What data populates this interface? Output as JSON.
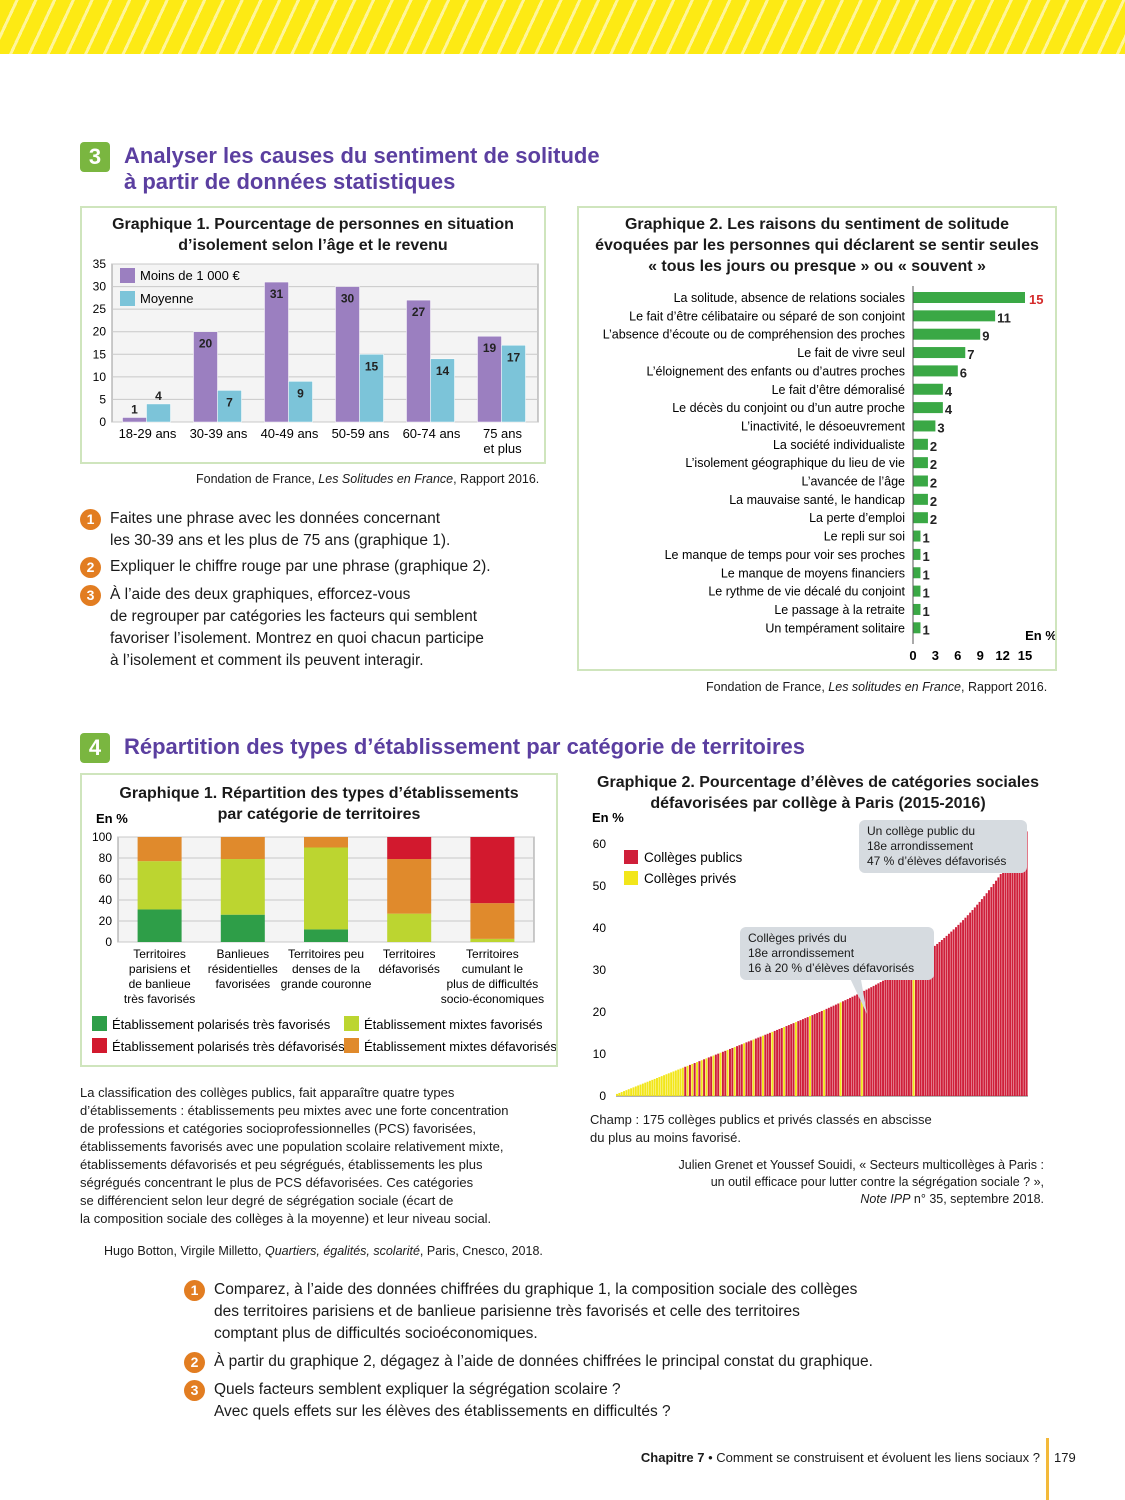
{
  "section3": {
    "number": "3",
    "title_line1": "Analyser les causes du sentiment de solitude",
    "title_line2": "à partir de données statistiques"
  },
  "section4": {
    "number": "4",
    "title": "Répartition des types d’établissement par catégorie de territoires"
  },
  "questions3": [
    {
      "num": "1",
      "lines": [
        "Faites une phrase avec les données concernant",
        "les 30-39 ans et les plus de 75 ans (graphique 1)."
      ]
    },
    {
      "num": "2",
      "lines": [
        "Expliquer le chiffre rouge par une phrase (graphique 2)."
      ]
    },
    {
      "num": "3",
      "lines": [
        "À l’aide des deux graphiques, efforcez-vous",
        "de regrouper par catégories les facteurs qui semblent",
        "favoriser l’isolement. Montrez en quoi chacun participe",
        "à l’isolement et comment ils peuvent interagir."
      ]
    }
  ],
  "questions4": [
    {
      "num": "1",
      "lines": [
        "Comparez, à l’aide des données chiffrées du graphique 1, la composition sociale des collèges",
        "des territoires parisiens et de banlieue parisienne très favorisés et celle des territoires",
        "comptant plus de difficultés socioéconomiques."
      ]
    },
    {
      "num": "2",
      "lines": [
        "À partir du graphique 2, dégagez à l’aide de données chiffrées le principal constat du graphique."
      ]
    },
    {
      "num": "3",
      "lines": [
        "Quels facteurs semblent expliquer la ségrégation scolaire ?",
        "Avec quels effets sur les élèves des établissements en difficultés ?"
      ]
    }
  ],
  "text4": {
    "lines": [
      "La classification des collèges publics, fait apparaître quatre types",
      "d’établissements : établissements peu mixtes avec une forte concentration",
      "de professions et catégories socioprofessionnelles (PCS) favorisées,",
      "établissements favorisés avec une population scolaire relativement mixte,",
      "établissements défavorisés et peu ségrégués, établissements les plus",
      "ségrégués concentrant le plus de PCS défavorisées. Ces catégories",
      "se différencient selon leur degré de ségrégation sociale (écart de",
      "la composition sociale des collèges à la moyenne) et leur niveau social."
    ],
    "source_authors": "Hugo Botton, Virgile Milletto, ",
    "source_title": "Quartiers, égalités, scolarité",
    "source_rest": ", Paris, Cnesco, 2018."
  },
  "footer": {
    "chapter": "Chapitre 7",
    "separator": " • ",
    "chapter_title": "Comment se construisent et évoluent les liens sociaux ?",
    "page": "179"
  },
  "chart_data": [
    {
      "id": "s3g1",
      "type": "bar",
      "title": "Graphique 1. Pourcentage de personnes en situation d’isolement selon l’âge et le revenu",
      "title_line1": "Graphique 1. Pourcentage de personnes en situation",
      "title_line2": "d’isolement selon l’âge et le revenu",
      "categories": [
        "18-29 ans",
        "30-39 ans",
        "40-49 ans",
        "50-59 ans",
        "60-74 ans",
        "75 ans et plus"
      ],
      "category_lines": [
        [
          "18-29 ans"
        ],
        [
          "30-39 ans"
        ],
        [
          "40-49 ans"
        ],
        [
          "50-59 ans"
        ],
        [
          "60-74 ans"
        ],
        [
          "75 ans",
          "et plus"
        ]
      ],
      "series": [
        {
          "name": "Moins de 1 000 €",
          "color": "#9b7fc0",
          "values": [
            1,
            20,
            31,
            30,
            27,
            19
          ]
        },
        {
          "name": "Moyenne",
          "color": "#7cc4d9",
          "values": [
            4,
            7,
            9,
            15,
            14,
            17
          ]
        }
      ],
      "ylim": [
        0,
        35
      ],
      "yticks": [
        0,
        5,
        10,
        15,
        20,
        25,
        30,
        35
      ],
      "grid": true,
      "legend": "top-left",
      "source_prefix": "Fondation de France, ",
      "source_title": "Les Solitudes en France",
      "source_suffix": ", Rapport 2016."
    },
    {
      "id": "s3g2",
      "type": "bar",
      "orientation": "horizontal",
      "title": "Graphique 2. Les raisons du sentiment de solitude évoquées par les personnes qui déclarent se sentir seules « tous les jours ou presque » ou « souvent »",
      "title_lines": [
        "Graphique 2. Les raisons du sentiment de solitude",
        "évoquées par les personnes qui déclarent se sentir seules",
        "« tous les jours ou presque » ou « souvent »"
      ],
      "categories": [
        "La solitude, absence de relations sociales",
        "Le fait d’être célibataire ou séparé de son conjoint",
        "L’absence d’écoute ou de compréhension des proches",
        "Le fait de vivre seul",
        "L’éloignement des enfants ou d’autres proches",
        "Le fait d’être démoralisé",
        "Le décès du conjoint ou d’un autre proche",
        "L’inactivité, le désoeuvrement",
        "La société individualiste",
        "L’isolement géographique du lieu de vie",
        "L’avancée de l’âge",
        "La mauvaise santé, le handicap",
        "La perte d’emploi",
        "Le repli sur soi",
        "Le manque de temps pour voir ses proches",
        "Le manque de moyens financiers",
        "Le rythme de vie décalé du conjoint",
        "Le passage à la retraite",
        "Un tempérament solitaire"
      ],
      "values": [
        15,
        11,
        9,
        7,
        6,
        4,
        4,
        3,
        2,
        2,
        2,
        2,
        2,
        1,
        1,
        1,
        1,
        1,
        1
      ],
      "highlight_color": "#d42a2a",
      "bar_color": "#3aa845",
      "xlim": [
        0,
        15
      ],
      "xticks": [
        0,
        3,
        6,
        9,
        12,
        15
      ],
      "unit_label": "En %",
      "source_prefix": "Fondation de France, ",
      "source_title": "Les solitudes en France",
      "source_suffix": ", Rapport 2016."
    },
    {
      "id": "s4g1",
      "type": "bar",
      "stacked": true,
      "title": "Graphique 1. Répartition des types d’établissements par catégorie de territoires",
      "title_line1": "Graphique 1. Répartition des types d’établissements",
      "title_line2": "par catégorie de territoires",
      "ylabel": "En %",
      "ylim": [
        0,
        100
      ],
      "yticks": [
        0,
        20,
        40,
        60,
        80,
        100
      ],
      "categories": [
        "Territoires parisiens et de banlieue très favorisés",
        "Banlieues résidentielles favorisées",
        "Territoires peu denses de la grande couronne",
        "Territoires défavorisés",
        "Territoires cumulant le plus de difficultés socio-économiques"
      ],
      "category_lines": [
        [
          "Territoires",
          "parisiens et",
          "de banlieue",
          "très favorisés"
        ],
        [
          "Banlieues",
          "résidentielles",
          "favorisées"
        ],
        [
          "Territoires peu",
          "denses de la",
          "grande couronne"
        ],
        [
          "Territoires",
          "défavorisés"
        ],
        [
          "Territoires",
          "cumulant le",
          "plus de difficultés",
          "socio-économiques"
        ]
      ],
      "series": [
        {
          "name": "Établissement polarisés très favorisés",
          "color": "#2e9e48",
          "values": [
            31,
            26,
            12,
            0,
            0
          ]
        },
        {
          "name": "Établissement mixtes favorisés",
          "color": "#bcd530",
          "values": [
            46,
            53,
            78,
            27,
            3
          ]
        },
        {
          "name": "Établissement mixtes défavorisés",
          "color": "#e08a2c",
          "values": [
            23,
            21,
            10,
            52,
            34
          ]
        },
        {
          "name": "Établissement polarisés très défavorisés",
          "color": "#d2192e",
          "values": [
            0,
            0,
            0,
            21,
            63
          ]
        }
      ],
      "legend_order": [
        0,
        1,
        3,
        2
      ],
      "grid": true
    },
    {
      "id": "s4g2",
      "type": "bar",
      "title": "Graphique 2. Pourcentage d’élèves de catégories sociales défavorisées par collège à Paris (2015-2016)",
      "title_line1": "Graphique 2. Pourcentage d’élèves de catégories sociales",
      "title_line2": "défavorisées par collège à Paris (2015-2016)",
      "ylabel": "En %",
      "ylim": [
        0,
        60
      ],
      "yticks": [
        0,
        10,
        20,
        30,
        40,
        50,
        60
      ],
      "n_colleges": 175,
      "value_range": [
        0.5,
        63
      ],
      "series": [
        {
          "name": "Collèges publics",
          "color": "#cf1f3a"
        },
        {
          "name": "Collèges privés",
          "color": "#f2e61a"
        }
      ],
      "annotations": [
        {
          "lines": [
            "Un collège public du",
            "18e arrondissement",
            "47 % d’élèves défavorisés"
          ]
        },
        {
          "lines": [
            "Collèges privés du",
            "18e arrondissement",
            "16 à 20 % d’élèves défavorisés"
          ]
        }
      ],
      "caption_lines": [
        "Champ : 175 collèges publics et privés classés en abscisse",
        "du plus au moins favorisé."
      ],
      "source_line1": "Julien Grenet et Youssef Souidi, « Secteurs multicollèges à Paris :",
      "source_line2": "un outil efficace pour lutter contre la ségrégation sociale ? »,",
      "source_title": "Note IPP",
      "source_rest": " n° 35, septembre 2018."
    }
  ]
}
